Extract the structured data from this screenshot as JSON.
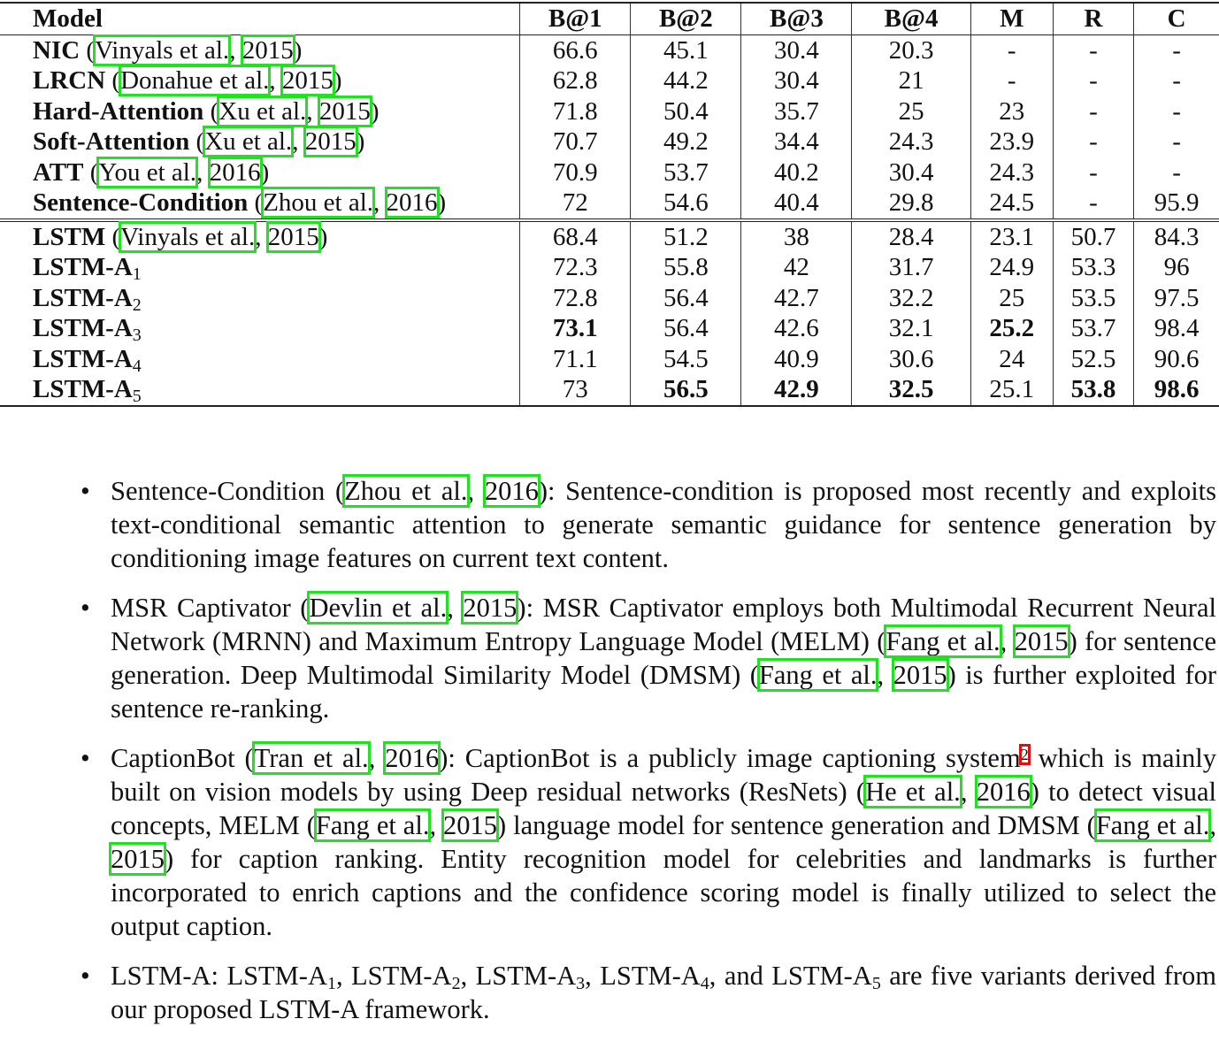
{
  "table": {
    "headers": [
      "Model",
      "B@1",
      "B@2",
      "B@3",
      "B@4",
      "M",
      "R",
      "C"
    ],
    "rows": [
      {
        "name": "NIC",
        "sub": "",
        "cite": [
          "Vinyals et al.",
          "2015"
        ],
        "values": [
          "66.6",
          "45.1",
          "30.4",
          "20.3",
          "-",
          "-",
          "-"
        ],
        "bold": []
      },
      {
        "name": "LRCN",
        "sub": "",
        "cite": [
          "Donahue et al.",
          "2015"
        ],
        "values": [
          "62.8",
          "44.2",
          "30.4",
          "21",
          "-",
          "-",
          "-"
        ],
        "bold": []
      },
      {
        "name": "Hard-Attention",
        "sub": "",
        "cite": [
          "Xu et al.",
          "2015"
        ],
        "values": [
          "71.8",
          "50.4",
          "35.7",
          "25",
          "23",
          "-",
          "-"
        ],
        "bold": []
      },
      {
        "name": "Soft-Attention",
        "sub": "",
        "cite": [
          "Xu et al.",
          "2015"
        ],
        "values": [
          "70.7",
          "49.2",
          "34.4",
          "24.3",
          "23.9",
          "-",
          "-"
        ],
        "bold": []
      },
      {
        "name": "ATT",
        "sub": "",
        "cite": [
          "You et al.",
          "2016"
        ],
        "values": [
          "70.9",
          "53.7",
          "40.2",
          "30.4",
          "24.3",
          "-",
          "-"
        ],
        "bold": []
      },
      {
        "name": "Sentence-Condition",
        "sub": "",
        "cite": [
          "Zhou et al.",
          "2016"
        ],
        "values": [
          "72",
          "54.6",
          "40.4",
          "29.8",
          "24.5",
          "-",
          "95.9"
        ],
        "bold": []
      },
      {
        "name": "LSTM",
        "sub": "",
        "cite": [
          "Vinyals et al.",
          "2015"
        ],
        "values": [
          "68.4",
          "51.2",
          "38",
          "28.4",
          "23.1",
          "50.7",
          "84.3"
        ],
        "bold": []
      },
      {
        "name": "LSTM-A",
        "sub": "1",
        "cite": null,
        "values": [
          "72.3",
          "55.8",
          "42",
          "31.7",
          "24.9",
          "53.3",
          "96"
        ],
        "bold": []
      },
      {
        "name": "LSTM-A",
        "sub": "2",
        "cite": null,
        "values": [
          "72.8",
          "56.4",
          "42.7",
          "32.2",
          "25",
          "53.5",
          "97.5"
        ],
        "bold": []
      },
      {
        "name": "LSTM-A",
        "sub": "3",
        "cite": null,
        "values": [
          "73.1",
          "56.4",
          "42.6",
          "32.1",
          "25.2",
          "53.7",
          "98.4"
        ],
        "bold": [
          0,
          4
        ]
      },
      {
        "name": "LSTM-A",
        "sub": "4",
        "cite": null,
        "values": [
          "71.1",
          "54.5",
          "40.9",
          "30.6",
          "24",
          "52.5",
          "90.6"
        ],
        "bold": []
      },
      {
        "name": "LSTM-A",
        "sub": "5",
        "cite": null,
        "values": [
          "73",
          "56.5",
          "42.9",
          "32.5",
          "25.1",
          "53.8",
          "98.6"
        ],
        "bold": [
          1,
          2,
          3,
          5,
          6
        ]
      }
    ]
  },
  "bullets": [
    [
      {
        "t": "Sentence-Condition ("
      },
      {
        "t": "Zhou et al.",
        "c": 1
      },
      {
        "t": ", "
      },
      {
        "t": "2016",
        "c": 1
      },
      {
        "t": "): Sentence-condition is proposed most recently and exploits text-conditional semantic attention to generate semantic guidance for sentence generation by conditioning image features on current text content."
      }
    ],
    [
      {
        "t": "MSR Captivator ("
      },
      {
        "t": "Devlin et al.",
        "c": 1
      },
      {
        "t": ", "
      },
      {
        "t": "2015",
        "c": 1
      },
      {
        "t": "): MSR Captivator employs both Multimodal Recurrent Neural Network (MRNN) and Maximum Entropy Language Model (MELM) ("
      },
      {
        "t": "Fang et al.",
        "c": 1
      },
      {
        "t": ", "
      },
      {
        "t": "2015",
        "c": 1
      },
      {
        "t": ") for sentence generation. Deep Multimodal Similarity Model (DMSM) ("
      },
      {
        "t": "Fang et al.",
        "c": 1
      },
      {
        "t": ", "
      },
      {
        "t": "2015",
        "c": 1
      },
      {
        "t": ") is further exploited for sentence re-ranking."
      }
    ],
    [
      {
        "t": "CaptionBot ("
      },
      {
        "t": "Tran et al.",
        "c": 1
      },
      {
        "t": ", "
      },
      {
        "t": "2016",
        "c": 1
      },
      {
        "t": "): CaptionBot is a publicly image captioning system"
      },
      {
        "t": "2",
        "f": 1
      },
      {
        "t": " which is mainly built on vision models by using Deep residual networks (ResNets) ("
      },
      {
        "t": "He et al.",
        "c": 1
      },
      {
        "t": ", "
      },
      {
        "t": "2016",
        "c": 1
      },
      {
        "t": ") to detect visual concepts, MELM ("
      },
      {
        "t": "Fang et al.",
        "c": 1
      },
      {
        "t": ", "
      },
      {
        "t": "2015",
        "c": 1
      },
      {
        "t": ") language model for sentence generation and DMSM ("
      },
      {
        "t": "Fang et al.",
        "c": 1
      },
      {
        "t": ", "
      },
      {
        "t": "2015",
        "c": 1
      },
      {
        "t": ") for caption ranking. Entity recognition model for celebrities and landmarks is further incorporated to enrich captions and the confidence scoring model is finally utilized to select the output caption."
      }
    ],
    [
      {
        "t": "LSTM-A: LSTM-A"
      },
      {
        "t": "1",
        "s": 1
      },
      {
        "t": ", LSTM-A"
      },
      {
        "t": "2",
        "s": 1
      },
      {
        "t": ", LSTM-A"
      },
      {
        "t": "3",
        "s": 1
      },
      {
        "t": ", LSTM-A"
      },
      {
        "t": "4",
        "s": 1
      },
      {
        "t": ", and LSTM-A"
      },
      {
        "t": "5",
        "s": 1
      },
      {
        "t": " are five variants derived from our proposed LSTM-A framework."
      }
    ]
  ]
}
